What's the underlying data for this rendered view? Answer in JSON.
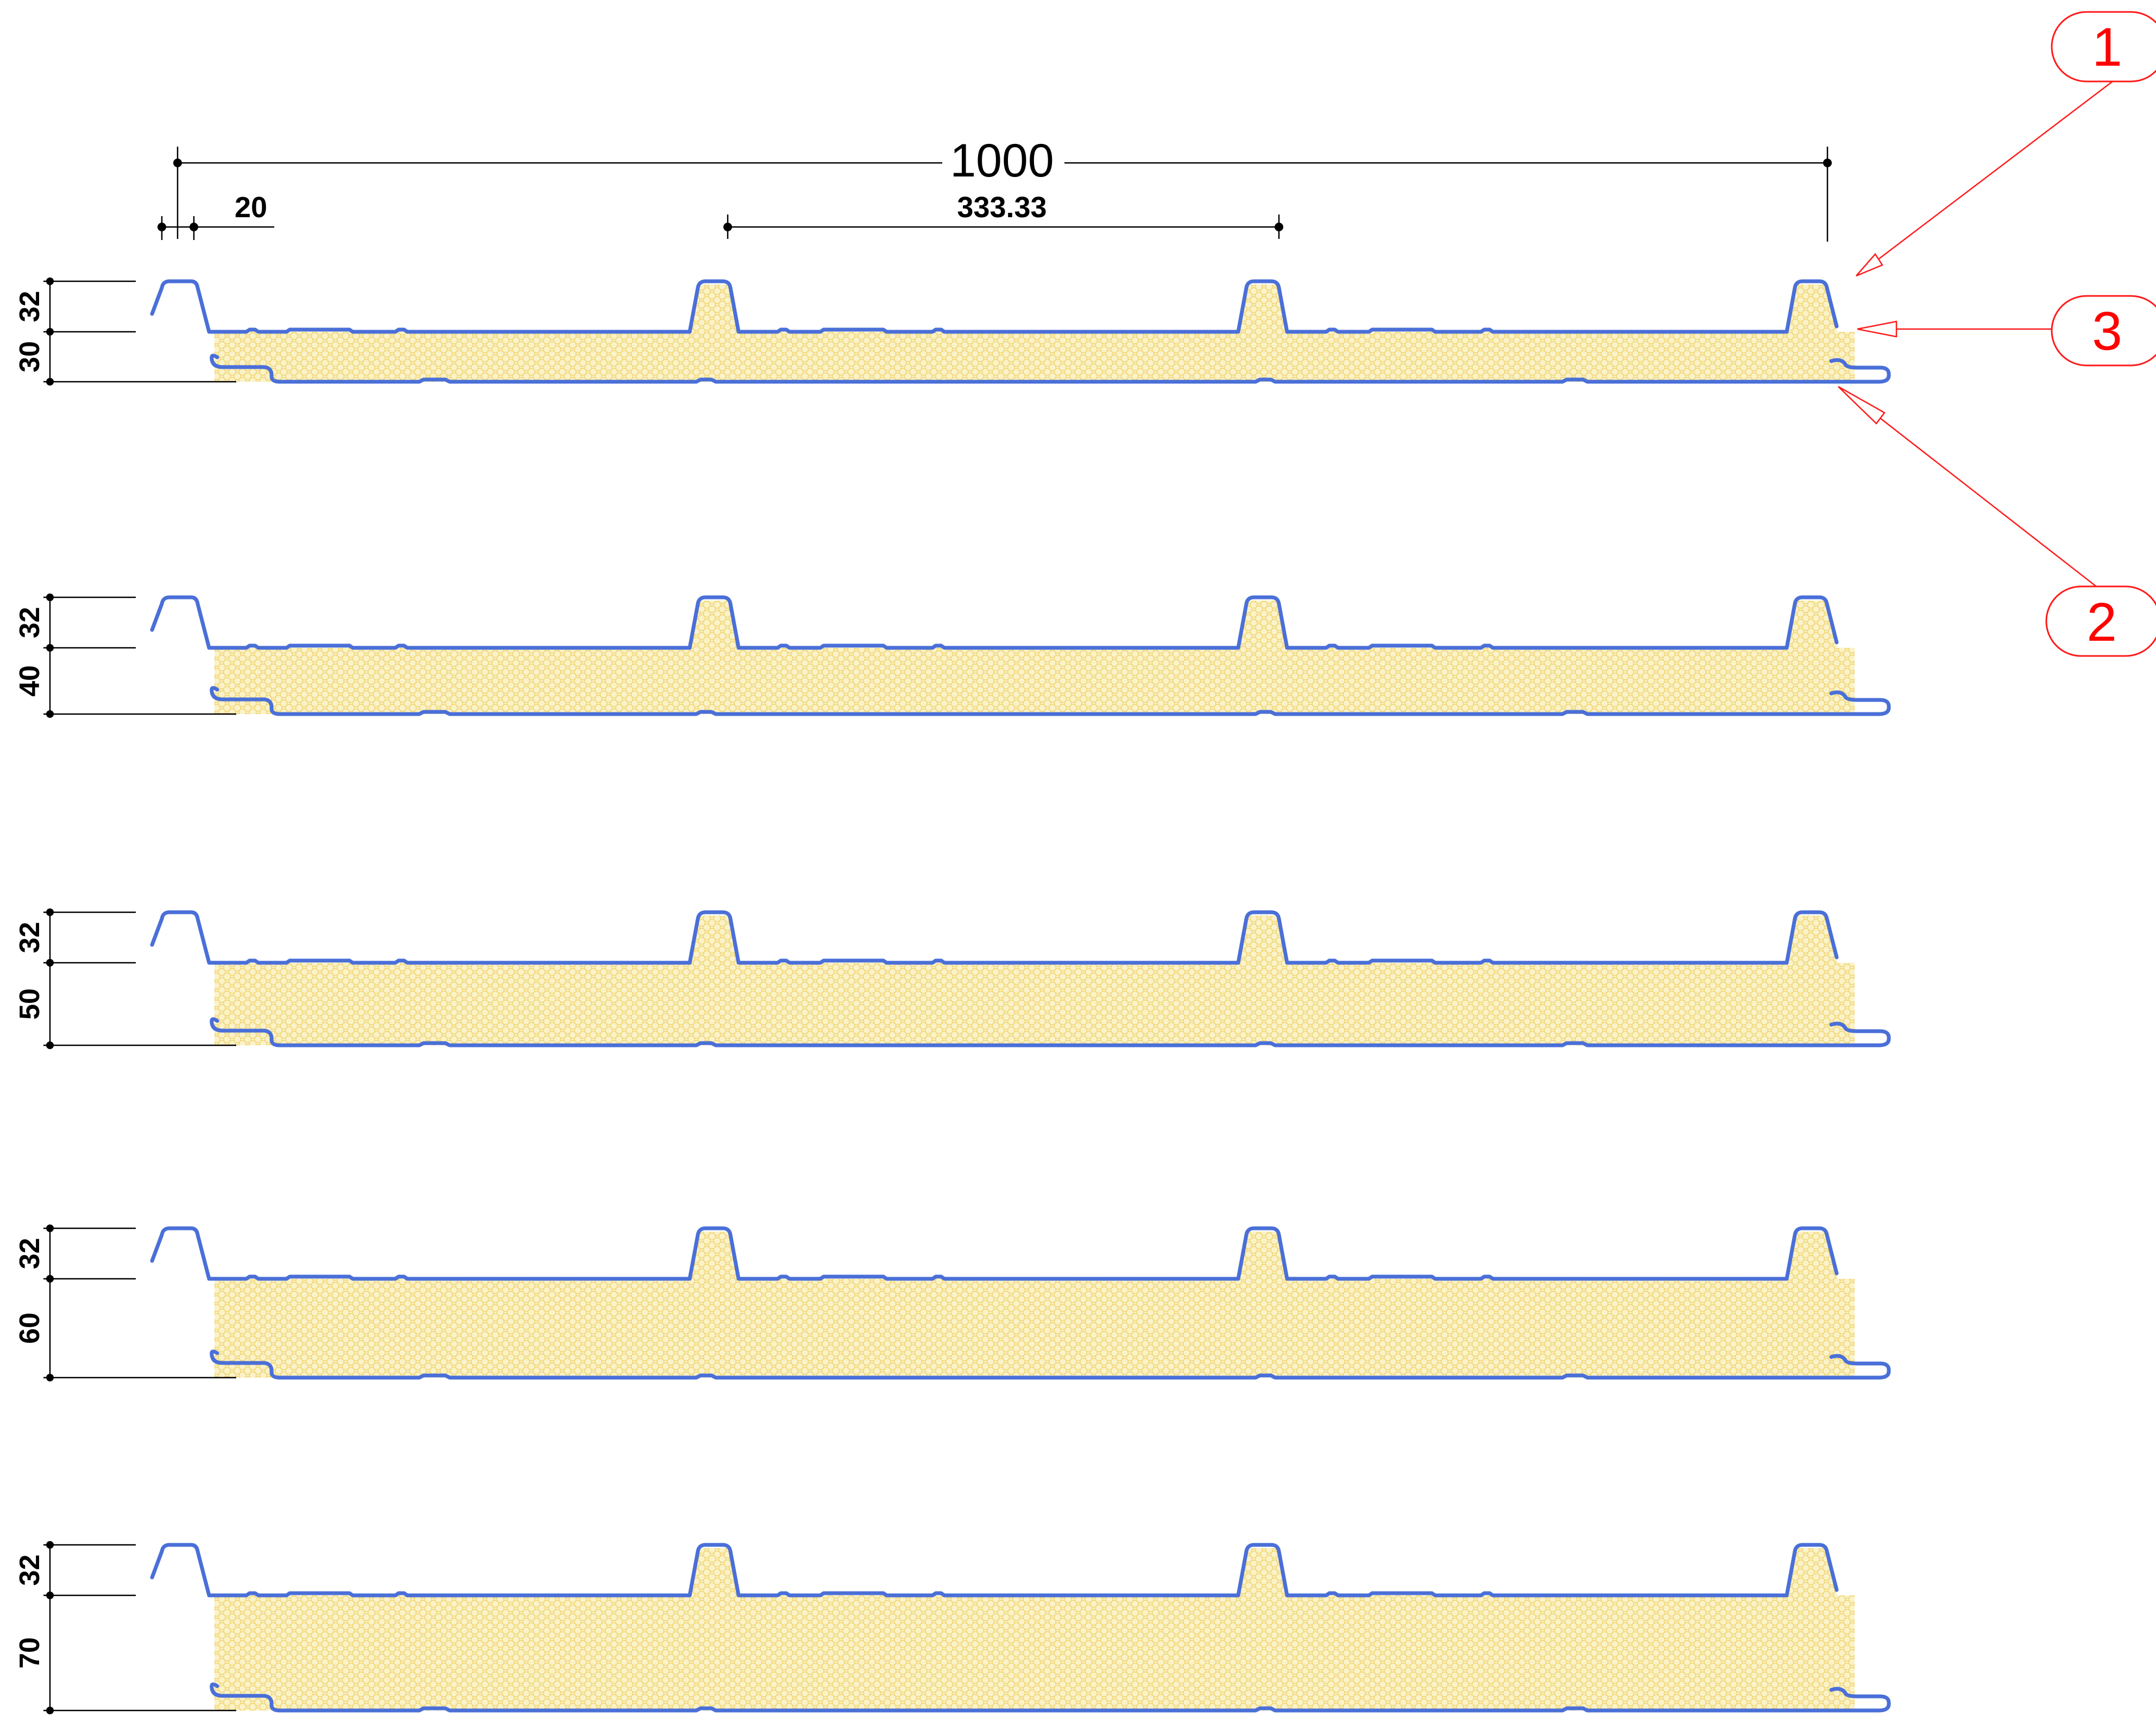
{
  "dimensions": {
    "overall_width": "1000",
    "rib_pitch": "333.33",
    "edge_offset": "20"
  },
  "panels": [
    {
      "rib_height": "32",
      "core_thickness": "30"
    },
    {
      "rib_height": "32",
      "core_thickness": "40"
    },
    {
      "rib_height": "32",
      "core_thickness": "50"
    },
    {
      "rib_height": "32",
      "core_thickness": "60"
    },
    {
      "rib_height": "32",
      "core_thickness": "70"
    }
  ],
  "callouts": [
    "1",
    "2",
    "3"
  ],
  "colors": {
    "sheet": "#4a6fd8",
    "core_fill": "#fbf2c8",
    "core_cells": "#f1d87a",
    "callout": "#ff0000",
    "dimension": "#000000"
  }
}
